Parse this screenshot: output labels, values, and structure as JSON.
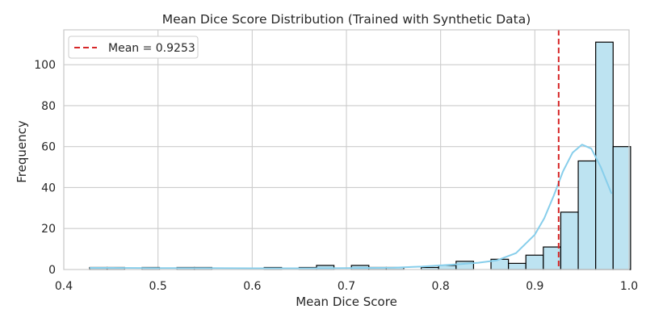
{
  "chart_data": {
    "type": "bar",
    "title": "Mean Dice Score Distribution (Trained with Synthetic Data)",
    "xlabel": "Mean Dice Score",
    "ylabel": "Frequency",
    "xlim": [
      0.4,
      1.0
    ],
    "ylim": [
      0,
      117
    ],
    "x_ticks": [
      "0.4",
      "0.5",
      "0.6",
      "0.7",
      "0.8",
      "0.9",
      "1.0"
    ],
    "y_ticks": [
      "0",
      "20",
      "40",
      "60",
      "80",
      "100"
    ],
    "grid": true,
    "legend_position": "top-left",
    "bin_start": 0.4275,
    "bin_width": 0.01852,
    "bin_counts": [
      1,
      1,
      0,
      1,
      0,
      1,
      1,
      0,
      0,
      0,
      1,
      0,
      1,
      2,
      0,
      2,
      1,
      1,
      0,
      1,
      2,
      4,
      0,
      5,
      3,
      7,
      11,
      28,
      53,
      111,
      60
    ],
    "mean": {
      "value": 0.9253,
      "label": "Mean = 0.9253",
      "color": "#d62728",
      "style": "dashed"
    },
    "kde": {
      "color": "#87ceeb",
      "x": [
        0.4275,
        0.45,
        0.5,
        0.55,
        0.6,
        0.65,
        0.7,
        0.75,
        0.78,
        0.8,
        0.82,
        0.84,
        0.86,
        0.88,
        0.9,
        0.91,
        0.92,
        0.93,
        0.94,
        0.95,
        0.96,
        0.97,
        0.9815
      ],
      "y": [
        0.8,
        0.8,
        0.7,
        0.7,
        0.6,
        0.6,
        0.7,
        0.9,
        1.4,
        2.0,
        2.6,
        3.3,
        4.5,
        8.0,
        17.0,
        25.0,
        36.0,
        48.0,
        57.0,
        61.0,
        59.0,
        50.0,
        37.0
      ]
    },
    "colors": {
      "bar_fill": "#bde3f1",
      "bar_edge": "#000000"
    }
  }
}
